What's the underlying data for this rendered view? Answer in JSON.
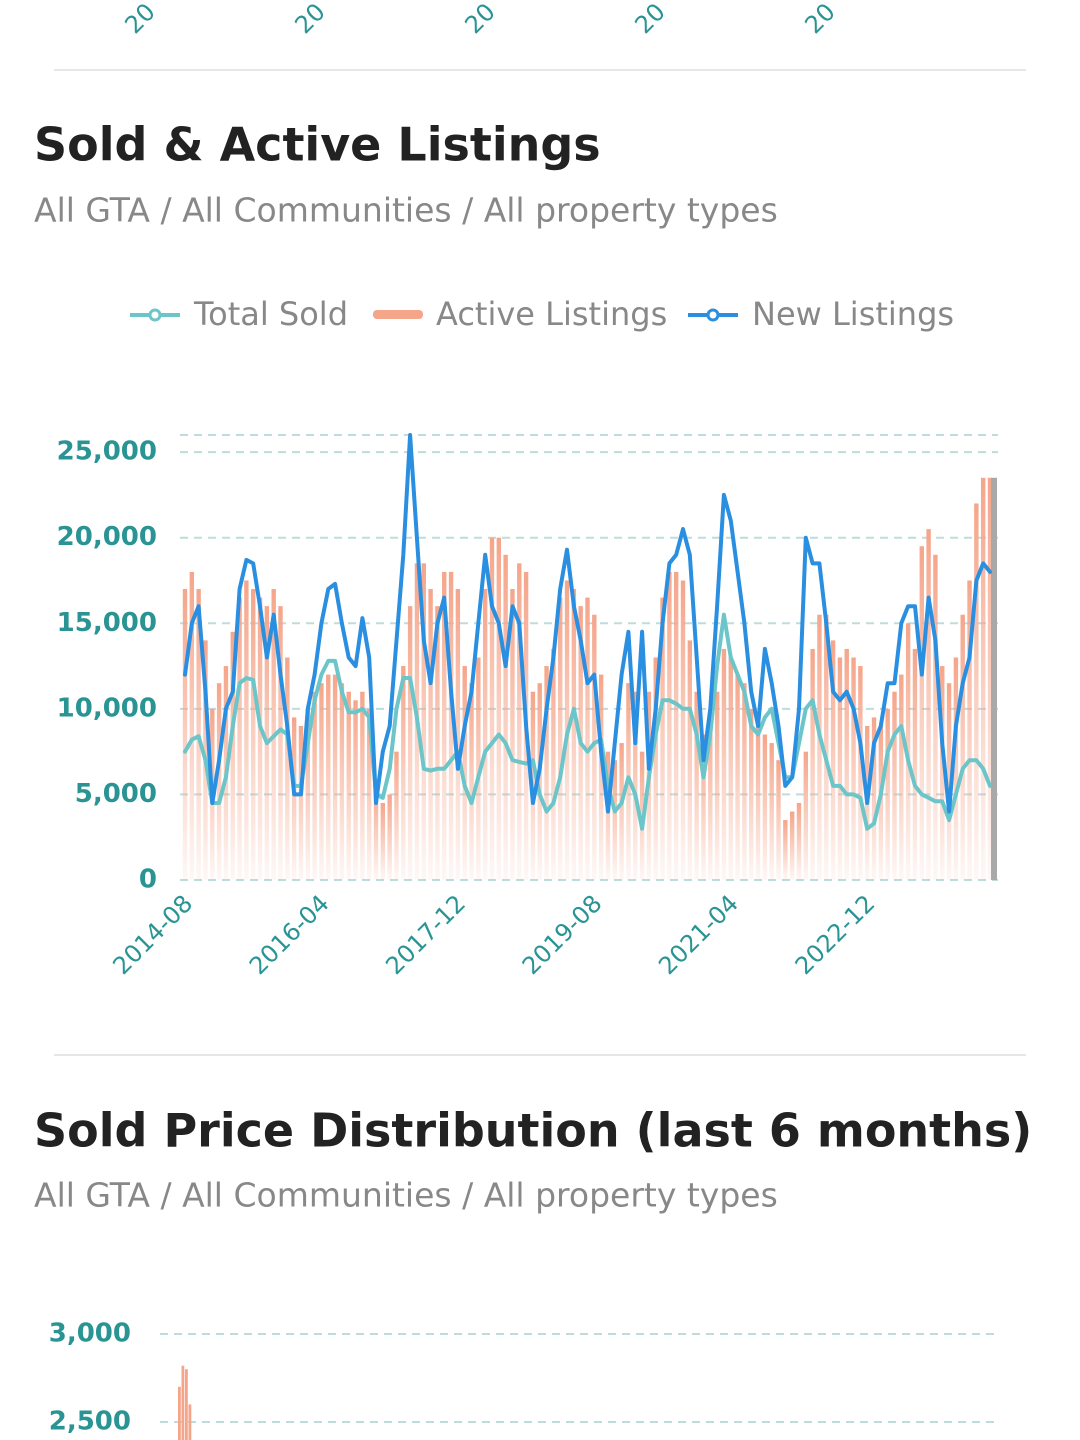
{
  "previous_chart_axis": {
    "x_tick_labels": [
      "20",
      "20",
      "20",
      "20",
      "20"
    ]
  },
  "chart_data": [
    {
      "type": "line",
      "title": "Sold & Active Listings",
      "subtitle": "All GTA / All Communities / All property types",
      "categories": [
        "2014-08",
        null,
        null,
        null,
        null,
        null,
        null,
        null,
        null,
        null,
        null,
        null,
        null,
        null,
        null,
        null,
        null,
        null,
        null,
        null,
        "2016-04",
        null,
        null,
        null,
        null,
        null,
        null,
        null,
        null,
        null,
        null,
        null,
        null,
        null,
        null,
        null,
        null,
        null,
        null,
        null,
        "2017-12",
        null,
        null,
        null,
        null,
        null,
        null,
        null,
        null,
        null,
        null,
        null,
        null,
        null,
        null,
        null,
        null,
        null,
        null,
        null,
        "2019-08",
        null,
        null,
        null,
        null,
        null,
        null,
        null,
        null,
        null,
        null,
        null,
        null,
        null,
        null,
        null,
        null,
        null,
        null,
        null,
        "2021-04",
        null,
        null,
        null,
        null,
        null,
        null,
        null,
        null,
        null,
        null,
        null,
        null,
        null,
        null,
        null,
        null,
        null,
        null,
        null,
        "2022-12",
        null,
        null,
        null,
        null,
        null,
        null,
        null,
        null,
        null,
        null,
        null,
        null,
        null,
        null,
        null,
        null,
        null,
        null
      ],
      "ylim": [
        0,
        26000
      ],
      "yticks": [
        0,
        {
          "value": 5000,
          "label": "5,000"
        },
        {
          "value": 10000,
          "label": "10,000"
        },
        {
          "value": 15000,
          "label": "15,000"
        },
        {
          "value": 20000,
          "label": "20,000"
        },
        {
          "value": 25000,
          "label": "25,000"
        }
      ],
      "grid": true,
      "series": [
        {
          "name": "Total Sold",
          "type": "line",
          "color": "#6cc5c8",
          "values": [
            7500,
            8200,
            8400,
            7000,
            4500,
            4500,
            6000,
            9000,
            11500,
            11800,
            11700,
            9000,
            8000,
            8400,
            8800,
            8500,
            5500,
            5500,
            8000,
            10500,
            12000,
            12800,
            12800,
            11000,
            9800,
            9800,
            10000,
            9500,
            5000,
            4800,
            6500,
            10000,
            11800,
            11800,
            9500,
            6500,
            6400,
            6500,
            6500,
            7000,
            7500,
            5500,
            4500,
            6000,
            7500,
            8000,
            8500,
            8000,
            7000,
            6900,
            6800,
            7000,
            5000,
            4000,
            4500,
            6000,
            8500,
            10000,
            8000,
            7500,
            8000,
            8200,
            5500,
            4000,
            4500,
            6000,
            5000,
            3000,
            6000,
            8500,
            10500,
            10500,
            10300,
            10000,
            10000,
            8500,
            6000,
            8500,
            12500,
            15500,
            13000,
            12000,
            11000,
            9000,
            8500,
            9500,
            10000,
            8000,
            6000,
            6000,
            8000,
            10000,
            10500,
            8500,
            7000,
            5500,
            5500,
            5000,
            5000,
            4800,
            3000,
            3300,
            5000,
            7500,
            8500,
            9000,
            7000,
            5500,
            5000,
            4800,
            4600,
            4600,
            3500,
            5000,
            6500,
            7000,
            7000,
            6500,
            5500
          ]
        },
        {
          "name": "Active Listings",
          "type": "bar",
          "color": "#f5a58a",
          "values": [
            17000,
            18000,
            17000,
            14000,
            10000,
            11500,
            12500,
            14500,
            16500,
            17500,
            17000,
            16500,
            16000,
            17000,
            16000,
            13000,
            9500,
            9000,
            10000,
            11000,
            11500,
            12000,
            12000,
            11500,
            11000,
            10500,
            11000,
            10000,
            5500,
            4500,
            5000,
            7500,
            12500,
            16000,
            18500,
            18500,
            17000,
            16000,
            18000,
            18000,
            17000,
            12500,
            11500,
            13000,
            17000,
            20000,
            20000,
            19000,
            17000,
            18500,
            18000,
            11000,
            11500,
            12500,
            13500,
            16500,
            17500,
            17000,
            16000,
            16500,
            15500,
            12000,
            7500,
            7000,
            8000,
            11500,
            11000,
            7500,
            11000,
            13000,
            16500,
            18000,
            18000,
            17500,
            14000,
            11000,
            8500,
            9500,
            11000,
            13500,
            13000,
            12000,
            11500,
            10000,
            9000,
            8500,
            8000,
            7000,
            3500,
            4000,
            4500,
            7500,
            13500,
            15500,
            15500,
            14000,
            13000,
            13500,
            13000,
            12500,
            9000,
            9500,
            9000,
            10000,
            11000,
            12000,
            15000,
            13500,
            19500,
            20500,
            19000,
            12500,
            11500,
            13000,
            15500,
            17500,
            22000,
            23500,
            23500
          ]
        },
        {
          "name": "New Listings",
          "type": "line",
          "color": "#2a8fe0",
          "values": [
            12000,
            15000,
            16000,
            11000,
            4500,
            7000,
            10000,
            11000,
            17000,
            18700,
            18500,
            16000,
            13000,
            15500,
            12000,
            9000,
            5000,
            5000,
            10000,
            12000,
            15000,
            17000,
            17300,
            15000,
            13000,
            12500,
            15300,
            13000,
            4500,
            7500,
            9000,
            14000,
            19000,
            26000,
            20000,
            14000,
            11500,
            15000,
            16500,
            11000,
            6500,
            9000,
            11000,
            15000,
            19000,
            16000,
            15000,
            12500,
            16000,
            15000,
            9000,
            4500,
            6500,
            10000,
            13000,
            17000,
            19300,
            16000,
            14000,
            11500,
            12000,
            7500,
            4000,
            8000,
            12000,
            14500,
            8000,
            14500,
            6500,
            10000,
            15000,
            18500,
            19000,
            20500,
            19000,
            13000,
            7000,
            10000,
            16000,
            22500,
            21000,
            18000,
            15000,
            11000,
            9000,
            13500,
            11500,
            9000,
            5500,
            6000,
            10000,
            20000,
            18500,
            18500,
            15000,
            11000,
            10500,
            11000,
            10000,
            8000,
            4500,
            8000,
            9000,
            11500,
            11500,
            15000,
            16000,
            16000,
            12000,
            16500,
            14000,
            8000,
            4000,
            9000,
            11500,
            13000,
            17500,
            18500,
            18000
          ]
        }
      ]
    },
    {
      "type": "bar",
      "title": "Sold Price Distribution (last 6 months)",
      "subtitle": "All GTA / All Communities / All property types",
      "ylim": [
        0,
        3000
      ],
      "yticks": [
        {
          "value": 3000,
          "label": "3,000"
        },
        {
          "value": 2500,
          "label": "2,500"
        }
      ],
      "grid": true,
      "color": "#f5a58a",
      "categories": [
        null,
        null,
        null,
        null
      ],
      "values": [
        2700,
        2820,
        2800,
        2600
      ]
    }
  ]
}
